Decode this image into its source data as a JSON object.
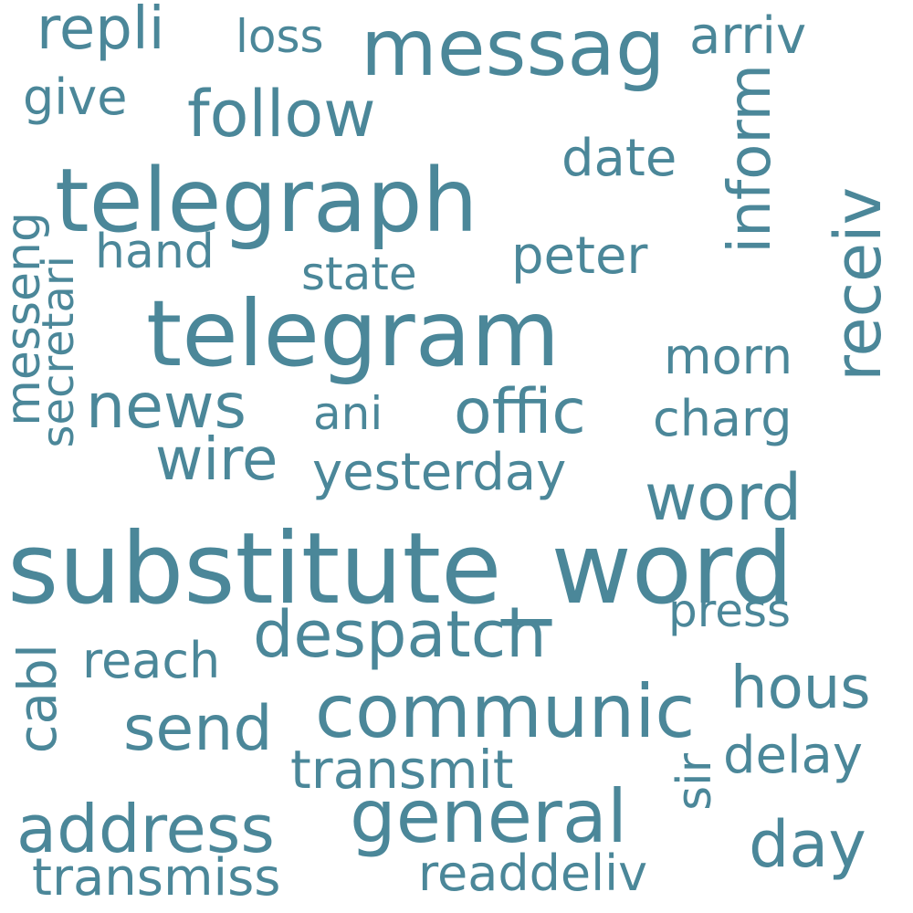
{
  "cloud": {
    "color": "#4b8799",
    "words": [
      {
        "text": "substitute_word"
      },
      {
        "text": "telegram"
      },
      {
        "text": "telegraph"
      },
      {
        "text": "messag"
      },
      {
        "text": "communic"
      },
      {
        "text": "general"
      },
      {
        "text": "address"
      },
      {
        "text": "despatch"
      },
      {
        "text": "follow"
      },
      {
        "text": "news"
      },
      {
        "text": "offic"
      },
      {
        "text": "word"
      },
      {
        "text": "wire"
      },
      {
        "text": "send"
      },
      {
        "text": "hous"
      },
      {
        "text": "day"
      },
      {
        "text": "repli"
      },
      {
        "text": "arriv"
      },
      {
        "text": "yesterday"
      },
      {
        "text": "date"
      },
      {
        "text": "peter"
      },
      {
        "text": "transmit"
      },
      {
        "text": "transmiss"
      },
      {
        "text": "readdeliv"
      },
      {
        "text": "delay"
      },
      {
        "text": "reach"
      },
      {
        "text": "charg"
      },
      {
        "text": "morn"
      },
      {
        "text": "give"
      },
      {
        "text": "hand"
      },
      {
        "text": "press"
      },
      {
        "text": "ani"
      },
      {
        "text": "state"
      },
      {
        "text": "loss"
      },
      {
        "text": "receiv"
      },
      {
        "text": "inform"
      },
      {
        "text": "messeng"
      },
      {
        "text": "secretari"
      },
      {
        "text": "cabl"
      },
      {
        "text": "sir"
      }
    ]
  }
}
